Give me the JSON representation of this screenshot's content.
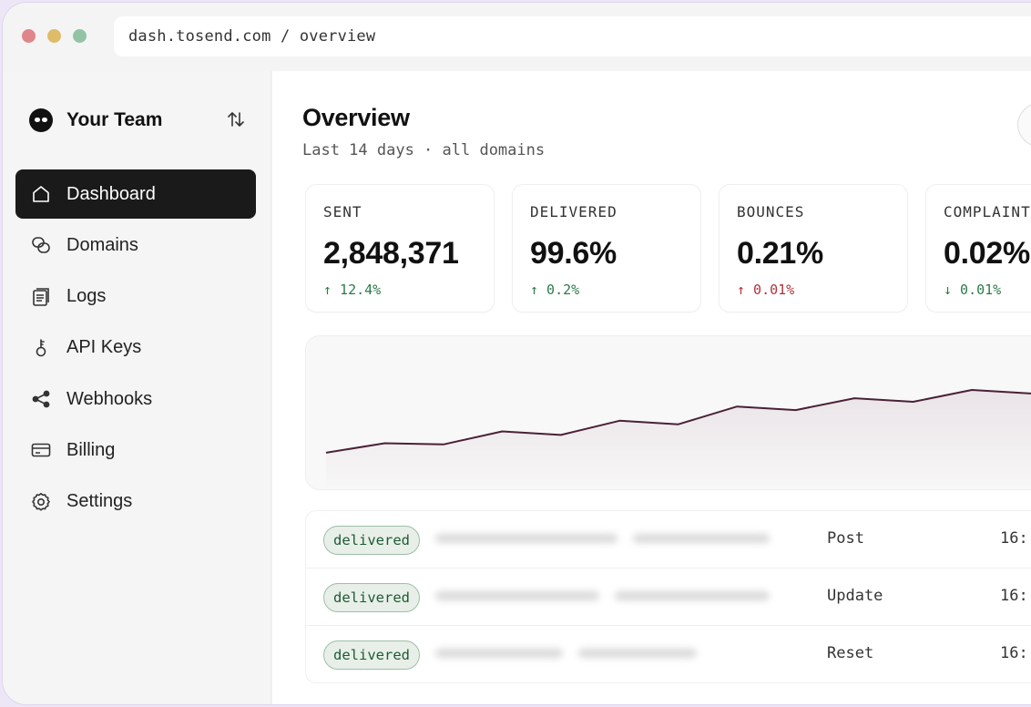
{
  "browser": {
    "url": "dash.tosend.com / overview"
  },
  "sidebar": {
    "team_name": "Your Team",
    "items": [
      {
        "label": "Dashboard",
        "icon": "home-icon",
        "active": true
      },
      {
        "label": "Domains",
        "icon": "domains-icon",
        "active": false
      },
      {
        "label": "Logs",
        "icon": "logs-icon",
        "active": false
      },
      {
        "label": "API Keys",
        "icon": "key-icon",
        "active": false
      },
      {
        "label": "Webhooks",
        "icon": "share-icon",
        "active": false
      },
      {
        "label": "Billing",
        "icon": "credit-card-icon",
        "active": false
      },
      {
        "label": "Settings",
        "icon": "gear-icon",
        "active": false
      }
    ]
  },
  "main": {
    "title": "Overview",
    "subtitle": "Last 14 days · all domains",
    "stats": [
      {
        "label": "SENT",
        "value": "2,848,371",
        "delta": "↑ 12.4%",
        "trend": "good"
      },
      {
        "label": "DELIVERED",
        "value": "99.6%",
        "delta": "↑ 0.2%",
        "trend": "good"
      },
      {
        "label": "BOUNCES",
        "value": "0.21%",
        "delta": "↑ 0.01%",
        "trend": "bad"
      },
      {
        "label": "COMPLAINTS",
        "value": "0.02%",
        "delta": "↓ 0.01%",
        "trend": "good"
      }
    ],
    "logs": [
      {
        "status": "delivered",
        "type": "Post",
        "time": "16:"
      },
      {
        "status": "delivered",
        "type": "Update",
        "time": "16:"
      },
      {
        "status": "delivered",
        "type": "Reset",
        "time": "16:"
      }
    ]
  },
  "chart_data": {
    "type": "area",
    "x": [
      1,
      2,
      3,
      4,
      5,
      6,
      7,
      8,
      9,
      10,
      11,
      12,
      13,
      14
    ],
    "values": [
      17,
      25,
      24,
      35,
      32,
      44,
      41,
      56,
      53,
      63,
      60,
      70,
      67,
      74
    ],
    "title": "",
    "xlabel": "",
    "ylabel": "",
    "ylim": [
      0,
      100
    ],
    "grid": false,
    "line_color": "#4a2137",
    "fill_color": "#e8e1e5"
  },
  "colors": {
    "accent_dark": "#1b1a1a",
    "delta_good": "#2c7a4b",
    "delta_bad": "#b0333e",
    "badge_bg": "#e7efe8"
  }
}
